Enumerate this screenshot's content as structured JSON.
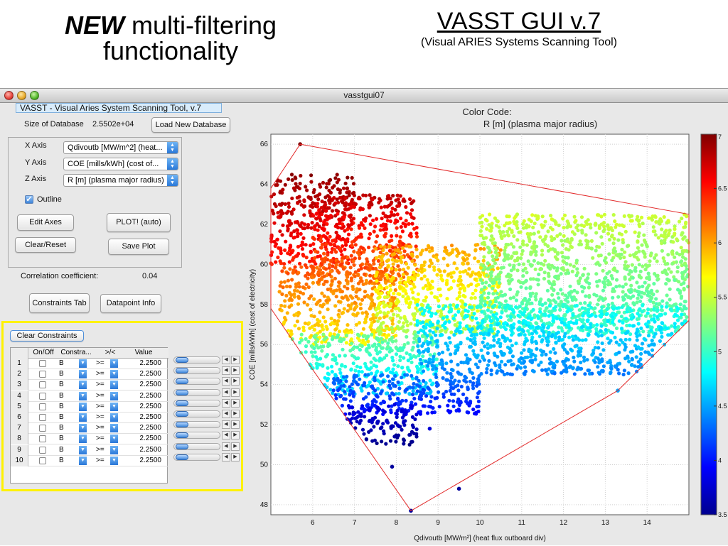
{
  "slide": {
    "left_title_emph": "NEW",
    "left_title_rest": " multi-filtering",
    "left_title_line2": "functionality",
    "right_title": "VASST GUI v.7",
    "right_subtitle": "(Visual ARIES Systems Scanning Tool)"
  },
  "window": {
    "title": "vasstgui07",
    "app_header": "VASST - Visual Aries System Scanning Tool, v.7"
  },
  "database": {
    "size_label": "Size of Database",
    "size_value": "2.5502e+04",
    "load_button": "Load New Database"
  },
  "axes": {
    "x_label": "X Axis",
    "x_value": "Qdivoutb [MW/m^2] (heat...",
    "y_label": "Y Axis",
    "y_value": "COE [mills/kWh] (cost of...",
    "z_label": "Z Axis",
    "z_value": "R [m] (plasma major radius)",
    "outline_label": "Outline",
    "outline_checked": true,
    "edit_axes": "Edit Axes",
    "plot_auto": "PLOT! (auto)",
    "clear_reset": "Clear/Reset",
    "save_plot": "Save Plot"
  },
  "correlation": {
    "label": "Correlation coefficient:",
    "value": "0.04"
  },
  "tabs": {
    "constraints_tab": "Constraints Tab",
    "datapoint_info": "Datapoint Info"
  },
  "constraints": {
    "clear_button": "Clear Constraints",
    "headers": [
      "On/Off",
      "Constra...",
      ">/<",
      "Value"
    ],
    "rows": [
      {
        "num": "1",
        "constraint": "B",
        "op": ">=",
        "value": "2.2500"
      },
      {
        "num": "2",
        "constraint": "B",
        "op": ">=",
        "value": "2.2500"
      },
      {
        "num": "3",
        "constraint": "B",
        "op": ">=",
        "value": "2.2500"
      },
      {
        "num": "4",
        "constraint": "B",
        "op": ">=",
        "value": "2.2500"
      },
      {
        "num": "5",
        "constraint": "B",
        "op": ">=",
        "value": "2.2500"
      },
      {
        "num": "6",
        "constraint": "B",
        "op": ">=",
        "value": "2.2500"
      },
      {
        "num": "7",
        "constraint": "B",
        "op": ">=",
        "value": "2.2500"
      },
      {
        "num": "8",
        "constraint": "B",
        "op": ">=",
        "value": "2.2500"
      },
      {
        "num": "9",
        "constraint": "B",
        "op": ">=",
        "value": "2.2500"
      },
      {
        "num": "10",
        "constraint": "B",
        "op": ">=",
        "value": "2.2500"
      }
    ]
  },
  "colors": {
    "highlight_frame": "#fff200",
    "outline_polygon": "#e32b2b"
  },
  "chart_data": {
    "type": "scatter",
    "title": "Color Code:",
    "subtitle": "R [m] (plasma major radius)",
    "xlabel": "Qdivoutb [MW/m²] (heat flux outboard div)",
    "ylabel": "COE [mills/kWh] (cost of electricity)",
    "xlim": [
      5,
      15
    ],
    "ylim": [
      47.5,
      66.5
    ],
    "x_ticks": [
      "6",
      "7",
      "8",
      "9",
      "10",
      "11",
      "12",
      "13",
      "14"
    ],
    "y_ticks": [
      "48",
      "50",
      "52",
      "54",
      "56",
      "58",
      "60",
      "62",
      "64",
      "66"
    ],
    "colorbar": {
      "range": [
        3.5,
        7
      ],
      "ticks": [
        "7",
        "6.5",
        "6",
        "5.5",
        "5",
        "4.5",
        "4",
        "3.5"
      ],
      "colormap": "jet"
    },
    "outline": [
      [
        5.7,
        66.0
      ],
      [
        15.0,
        62.5
      ],
      [
        15.0,
        57.2
      ],
      [
        13.3,
        53.7
      ],
      [
        8.35,
        47.7
      ],
      [
        5.85,
        55.2
      ],
      [
        5.0,
        57.8
      ],
      [
        5.0,
        63.8
      ]
    ],
    "series": [
      {
        "regions": [
          {
            "x": [
              5.0,
              7.0
            ],
            "y": [
              60.0,
              64.5
            ],
            "z": [
              6.4,
              7.0
            ]
          },
          {
            "x": [
              6.0,
              8.5
            ],
            "y": [
              59.0,
              63.5
            ],
            "z": [
              6.0,
              6.9
            ]
          },
          {
            "x": [
              5.2,
              8.0
            ],
            "y": [
              56.0,
              60.0
            ],
            "z": [
              5.6,
              6.4
            ]
          },
          {
            "x": [
              7.5,
              10.5
            ],
            "y": [
              56.5,
              61.0
            ],
            "z": [
              5.3,
              6.1
            ]
          },
          {
            "x": [
              10.0,
              15.0
            ],
            "y": [
              56.5,
              62.5
            ],
            "z": [
              4.9,
              5.6
            ]
          },
          {
            "x": [
              5.3,
              9.0
            ],
            "y": [
              53.5,
              56.5
            ],
            "z": [
              4.5,
              5.3
            ]
          },
          {
            "x": [
              8.5,
              15.0
            ],
            "y": [
              54.5,
              58.0
            ],
            "z": [
              4.3,
              5.0
            ]
          },
          {
            "x": [
              6.5,
              10.0
            ],
            "y": [
              52.5,
              54.5
            ],
            "z": [
              3.9,
              4.4
            ]
          },
          {
            "x": [
              6.8,
              8.5
            ],
            "y": [
              51.0,
              53.0
            ],
            "z": [
              3.5,
              3.9
            ]
          }
        ]
      }
    ],
    "outliers": [
      {
        "x": 7.9,
        "y": 49.9,
        "z": 3.6
      },
      {
        "x": 9.5,
        "y": 48.8,
        "z": 3.6
      },
      {
        "x": 8.35,
        "y": 47.7,
        "z": 3.6
      },
      {
        "x": 8.8,
        "y": 51.8,
        "z": 3.8
      },
      {
        "x": 5.7,
        "y": 66.0,
        "z": 7.0
      },
      {
        "x": 13.3,
        "y": 53.7,
        "z": 4.5
      }
    ]
  }
}
